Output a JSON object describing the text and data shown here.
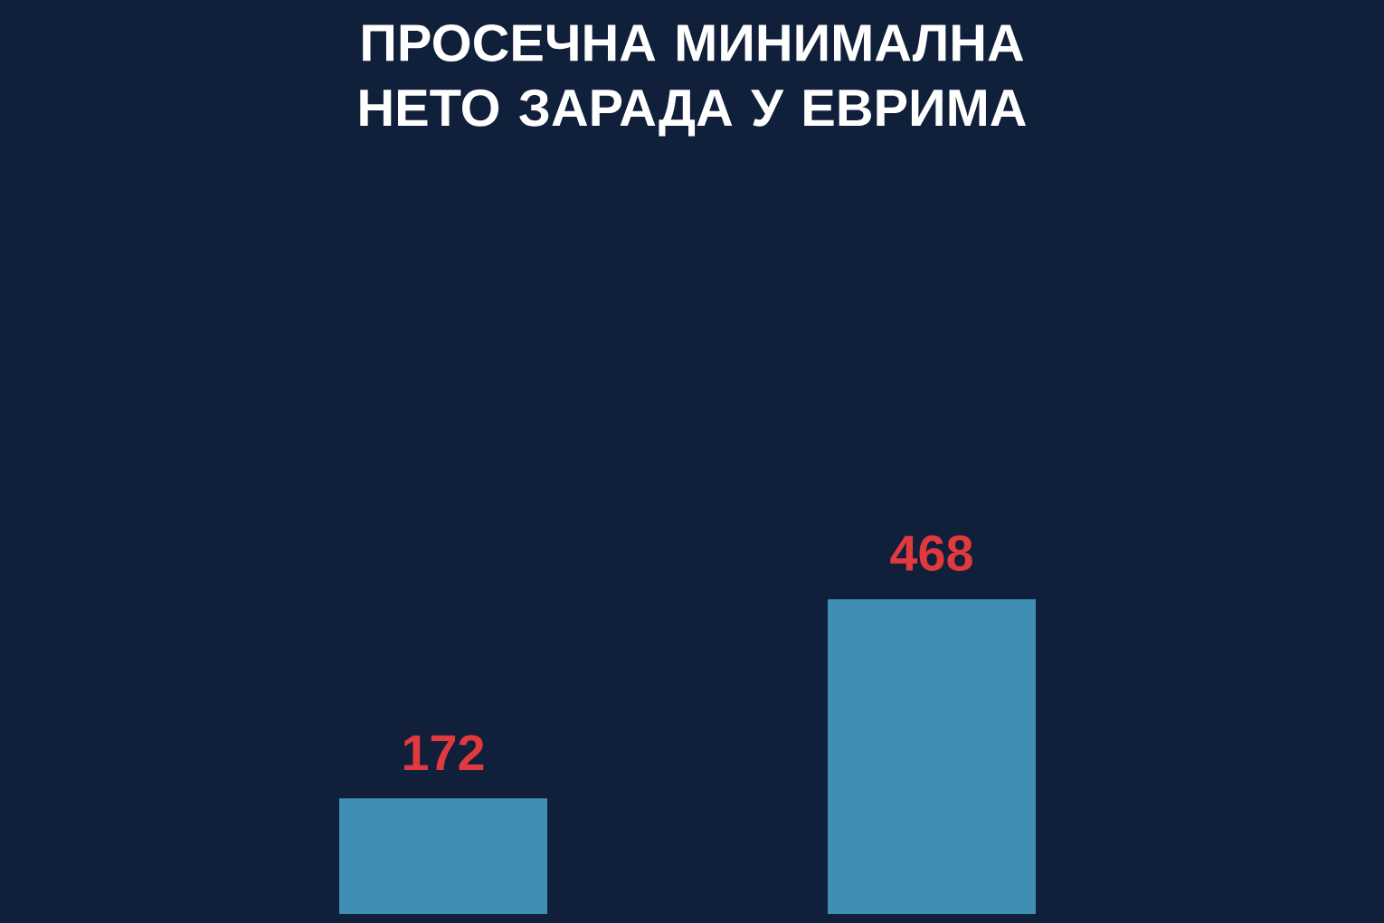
{
  "chart_data": {
    "type": "bar",
    "title": "ПРОСЕЧНА МИНИМАЛНА НЕТО ЗАРАДА У ЕВРИМА",
    "categories": [
      null,
      null
    ],
    "values": [
      172,
      468
    ],
    "color": "#3f8fb5",
    "data_labels": true
  }
}
